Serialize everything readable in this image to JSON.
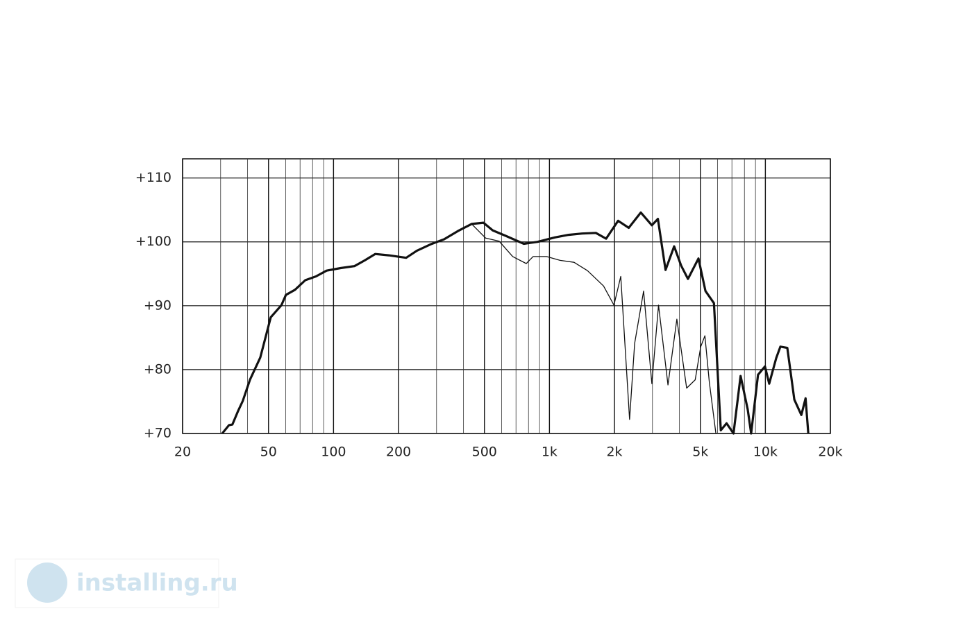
{
  "chart_data": {
    "type": "line",
    "log_x": true,
    "xlim": [
      20,
      20000
    ],
    "ylim": [
      70,
      113
    ],
    "xticks": [
      20,
      50,
      100,
      200,
      500,
      {
        "value": 1000,
        "label": "1k"
      },
      {
        "value": 2000,
        "label": "2k"
      },
      {
        "value": 5000,
        "label": "5k"
      },
      {
        "value": 10000,
        "label": "10k"
      },
      {
        "value": 20000,
        "label": "20k"
      }
    ],
    "xminor": [
      30,
      40,
      60,
      70,
      80,
      90,
      300,
      400,
      600,
      700,
      800,
      900,
      3000,
      4000,
      6000,
      7000,
      8000,
      9000
    ],
    "yticks": [
      {
        "value": 70,
        "label": "+70"
      },
      {
        "value": 80,
        "label": "+80"
      },
      {
        "value": 90,
        "label": "+90"
      },
      {
        "value": 100,
        "label": "+100"
      },
      {
        "value": 110,
        "label": "+110"
      }
    ],
    "grid": true,
    "series": [
      {
        "color": "#111111",
        "width": 3.2,
        "x": [
          30.5,
          32.8,
          34,
          36,
          38,
          41,
          45.8,
          51.2,
          57.4,
          60.2,
          66.3,
          74,
          82.9,
          92.9,
          107.9,
          125,
          139.6,
          155.9,
          180,
          217,
          243,
          281,
          325,
          377,
          436,
          495,
          546,
          631,
          761,
          881,
          1060,
          1226,
          1415,
          1640,
          1830,
          2080,
          2330,
          2650,
          2980,
          3180,
          3450,
          3780,
          4070,
          4380,
          4900,
          5280,
          5780,
          6220,
          6610,
          7120,
          7680,
          8280,
          8590,
          9250,
          9960,
          10420,
          11230,
          11740,
          12640,
          13620,
          14680,
          15350,
          15800
        ],
        "values": [
          70,
          71.3,
          71.4,
          73.4,
          75.1,
          78.4,
          81.9,
          88.2,
          90.1,
          91.7,
          92.5,
          94,
          94.6,
          95.5,
          95.9,
          96.2,
          97.1,
          98.1,
          97.9,
          97.5,
          98.6,
          99.6,
          100.4,
          101.7,
          102.8,
          103,
          101.8,
          100.9,
          99.7,
          100,
          100.7,
          101.1,
          101.3,
          101.4,
          100.5,
          103.3,
          102.2,
          104.6,
          102.6,
          103.6,
          95.6,
          99.3,
          96.3,
          94.2,
          97.4,
          92.3,
          90.4,
          70.5,
          71.6,
          70,
          79,
          73.8,
          70,
          79.2,
          80.5,
          77.8,
          81.8,
          83.6,
          83.4,
          75.3,
          72.9,
          75.5,
          70
        ]
      },
      {
        "color": "#111111",
        "width": 1.3,
        "x": [
          436,
          506,
          585,
          676,
          781,
          840,
          970,
          1120,
          1300,
          1500,
          1780,
          1990,
          2140,
          2350,
          2480,
          2730,
          2980,
          3200,
          3540,
          3890,
          4320,
          4730,
          5020,
          5250,
          5500,
          5900
        ],
        "values": [
          102.8,
          100.6,
          100.1,
          97.7,
          96.6,
          97.7,
          97.7,
          97.1,
          96.8,
          95.5,
          93.1,
          90.1,
          94.6,
          72.2,
          84.1,
          92.3,
          77.8,
          90.1,
          77.6,
          87.9,
          77.1,
          78.4,
          83.6,
          85.3,
          78.1,
          70
        ]
      }
    ]
  },
  "watermark": "installing.ru"
}
